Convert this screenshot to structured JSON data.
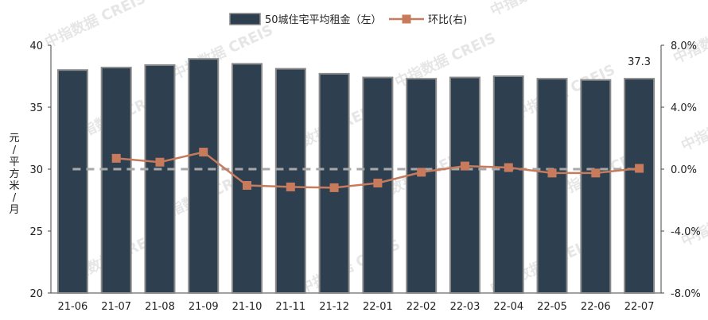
{
  "chart_data": {
    "type": "bar",
    "categories": [
      "21-06",
      "21-07",
      "21-08",
      "21-09",
      "21-10",
      "21-11",
      "21-12",
      "22-01",
      "22-02",
      "22-03",
      "22-04",
      "22-05",
      "22-06",
      "22-07"
    ],
    "series": [
      {
        "name": "50城住宅平均租金（左）",
        "type": "bar",
        "axis": "left",
        "color": "#2e4050",
        "values": [
          38.0,
          38.2,
          38.4,
          38.9,
          38.5,
          38.1,
          37.7,
          37.4,
          37.3,
          37.4,
          37.5,
          37.3,
          37.2,
          37.3
        ]
      },
      {
        "name": "环比(右)",
        "type": "line",
        "axis": "right",
        "color": "#c87b5c",
        "values": [
          null,
          0.7,
          0.45,
          1.1,
          -1.05,
          -1.15,
          -1.2,
          -0.9,
          -0.2,
          0.2,
          0.1,
          -0.25,
          -0.25,
          0.05
        ]
      }
    ],
    "ylim": [
      20,
      40
    ],
    "y_ticks": [
      "20",
      "25",
      "30",
      "35",
      "40"
    ],
    "y2lim": [
      -8,
      8
    ],
    "y2_ticks": [
      "-8.0%",
      "-4.0%",
      "0.0%",
      "4.0%",
      "8.0%"
    ],
    "ylabel": "元/平方米/月",
    "annotation": "37.3",
    "legend_position": "top",
    "reference_line": 0.0
  },
  "watermark": "中指数据 CREIS"
}
